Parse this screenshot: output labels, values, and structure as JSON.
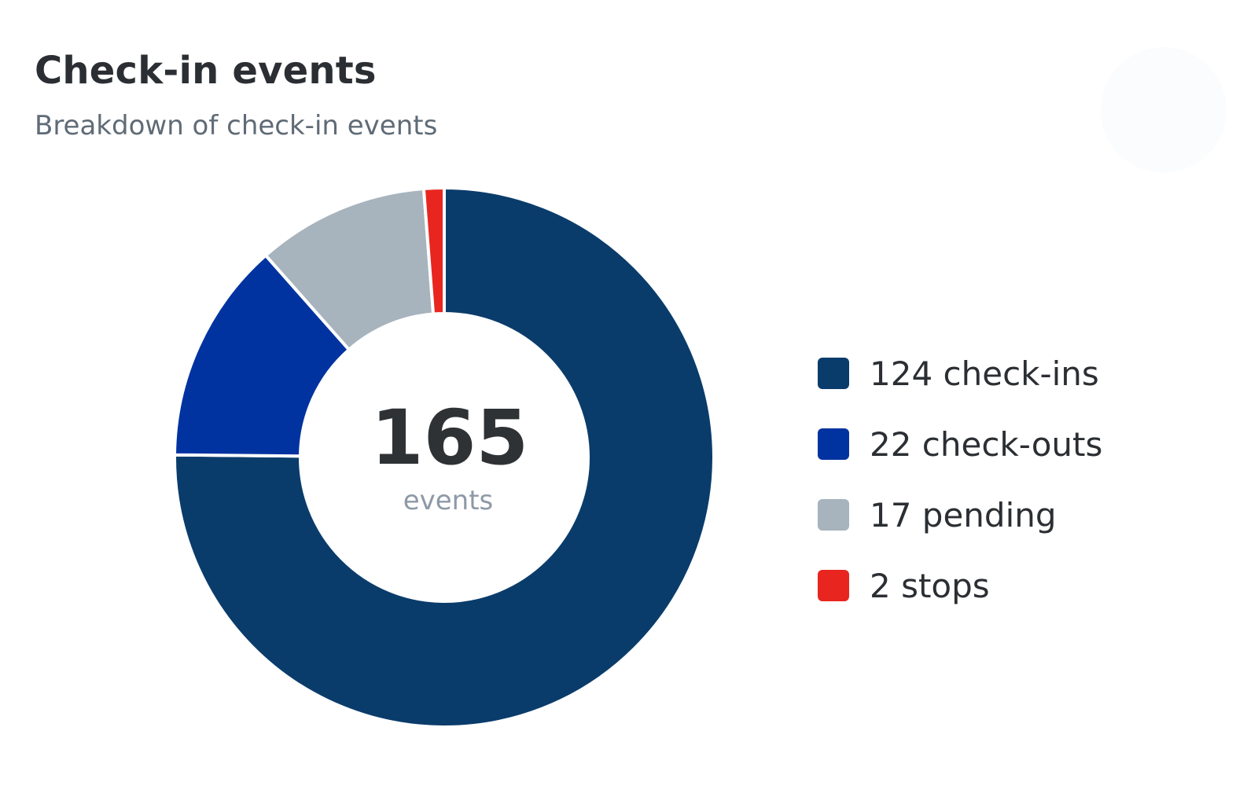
{
  "card": {
    "title": "Check-in events",
    "subtitle": "Breakdown of check-in events"
  },
  "chart_data": {
    "type": "pie",
    "variant": "donut",
    "title": "Check-in events",
    "subtitle": "Breakdown of check-in events",
    "center_total": "165",
    "center_label": "events",
    "legend_position": "right",
    "slices": [
      {
        "label": "check-ins",
        "value": 124,
        "legend": "124 check-ins",
        "color": "#0a3c6b"
      },
      {
        "label": "check-outs",
        "value": 22,
        "legend": "22 check-outs",
        "color": "#0033a0"
      },
      {
        "label": "pending",
        "value": 17,
        "legend": "17 pending",
        "color": "#a7b3bd"
      },
      {
        "label": "stops",
        "value": 2,
        "legend": "2 stops",
        "color": "#e8261f"
      }
    ]
  }
}
